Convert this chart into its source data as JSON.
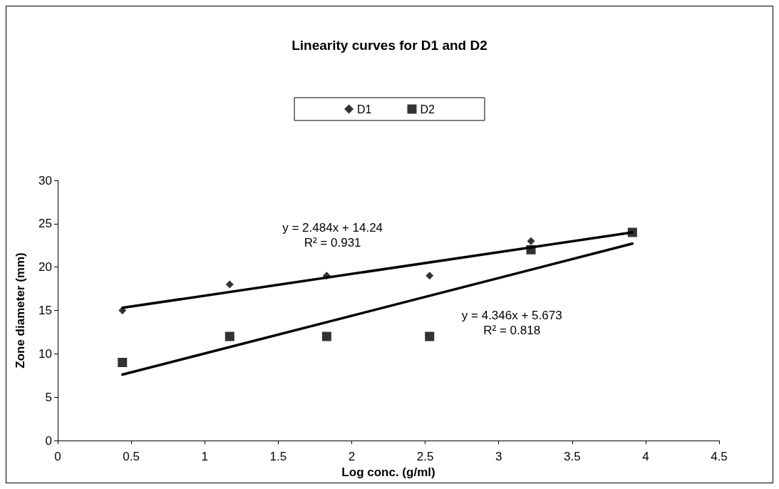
{
  "chart_data": {
    "type": "scatter",
    "title": "Linearity curves for D1 and D2",
    "xlabel": "Log conc. (g/ml)",
    "ylabel": "Zone diameter (mm)",
    "xlim": [
      0,
      4.5
    ],
    "xticks": [
      0,
      0.5,
      1,
      1.5,
      2,
      2.5,
      3,
      3.5,
      4,
      4.5
    ],
    "ylim": [
      0,
      30
    ],
    "yticks": [
      0,
      5,
      10,
      15,
      20,
      25,
      30
    ],
    "grid": false,
    "legend": "top",
    "series": [
      {
        "name": "D1",
        "marker": "diamond",
        "color": "#000000",
        "x": [
          0.44,
          1.17,
          1.83,
          2.53,
          3.22
        ],
        "values": [
          15,
          18,
          19,
          19,
          23
        ]
      },
      {
        "name": "D2",
        "marker": "square",
        "color": "#000000",
        "x": [
          0.44,
          1.17,
          1.83,
          2.53,
          3.22,
          3.91
        ],
        "values": [
          9,
          12,
          12,
          12,
          22,
          24
        ]
      },
      {
        "type": "line",
        "marker": "none",
        "color": "#000000",
        "x": [
          0.44,
          3.91
        ],
        "values": [
          15.3,
          24.0
        ]
      },
      {
        "type": "line",
        "marker": "none",
        "color": "#000000",
        "x": [
          0.44,
          3.91
        ],
        "values": [
          7.6,
          22.7
        ]
      }
    ],
    "annotations": [
      "y = 2.484x + 14.24\nR² = 0.931",
      "y = 4.346x + 5.673\nR² = 0.818"
    ]
  }
}
